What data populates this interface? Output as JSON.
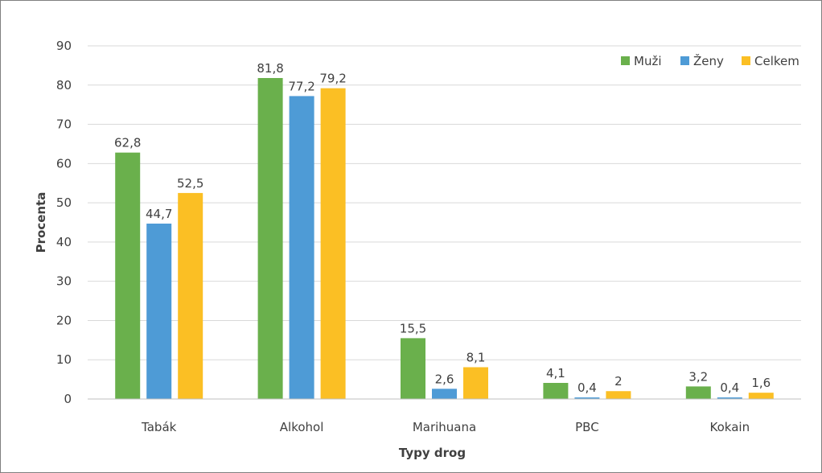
{
  "chart_data": {
    "type": "bar",
    "xlabel": "Typy drog",
    "ylabel": "Procenta",
    "ylim": [
      0,
      90
    ],
    "yticks": [
      0,
      10,
      20,
      30,
      40,
      50,
      60,
      70,
      80,
      90
    ],
    "grid": true,
    "legend_position": "top-right",
    "categories": [
      "Tabák",
      "Alkohol",
      "Marihuana",
      "PBC",
      "Kokain"
    ],
    "series": [
      {
        "name": "Muži",
        "color": "#6ab04c",
        "values": [
          62.8,
          81.8,
          15.5,
          4.1,
          3.2
        ],
        "labels": [
          "62,8",
          "81,8",
          "15,5",
          "4,1",
          "3,2"
        ]
      },
      {
        "name": "Ženy",
        "color": "#4e9bd6",
        "values": [
          44.7,
          77.2,
          2.6,
          0.4,
          0.4
        ],
        "labels": [
          "44,7",
          "77,2",
          "2,6",
          "0,4",
          "0,4"
        ]
      },
      {
        "name": "Celkem",
        "color": "#fbbf24",
        "values": [
          52.5,
          79.2,
          8.1,
          2,
          1.6
        ],
        "labels": [
          "52,5",
          "79,2",
          "8,1",
          "2",
          "1,6"
        ]
      }
    ]
  }
}
